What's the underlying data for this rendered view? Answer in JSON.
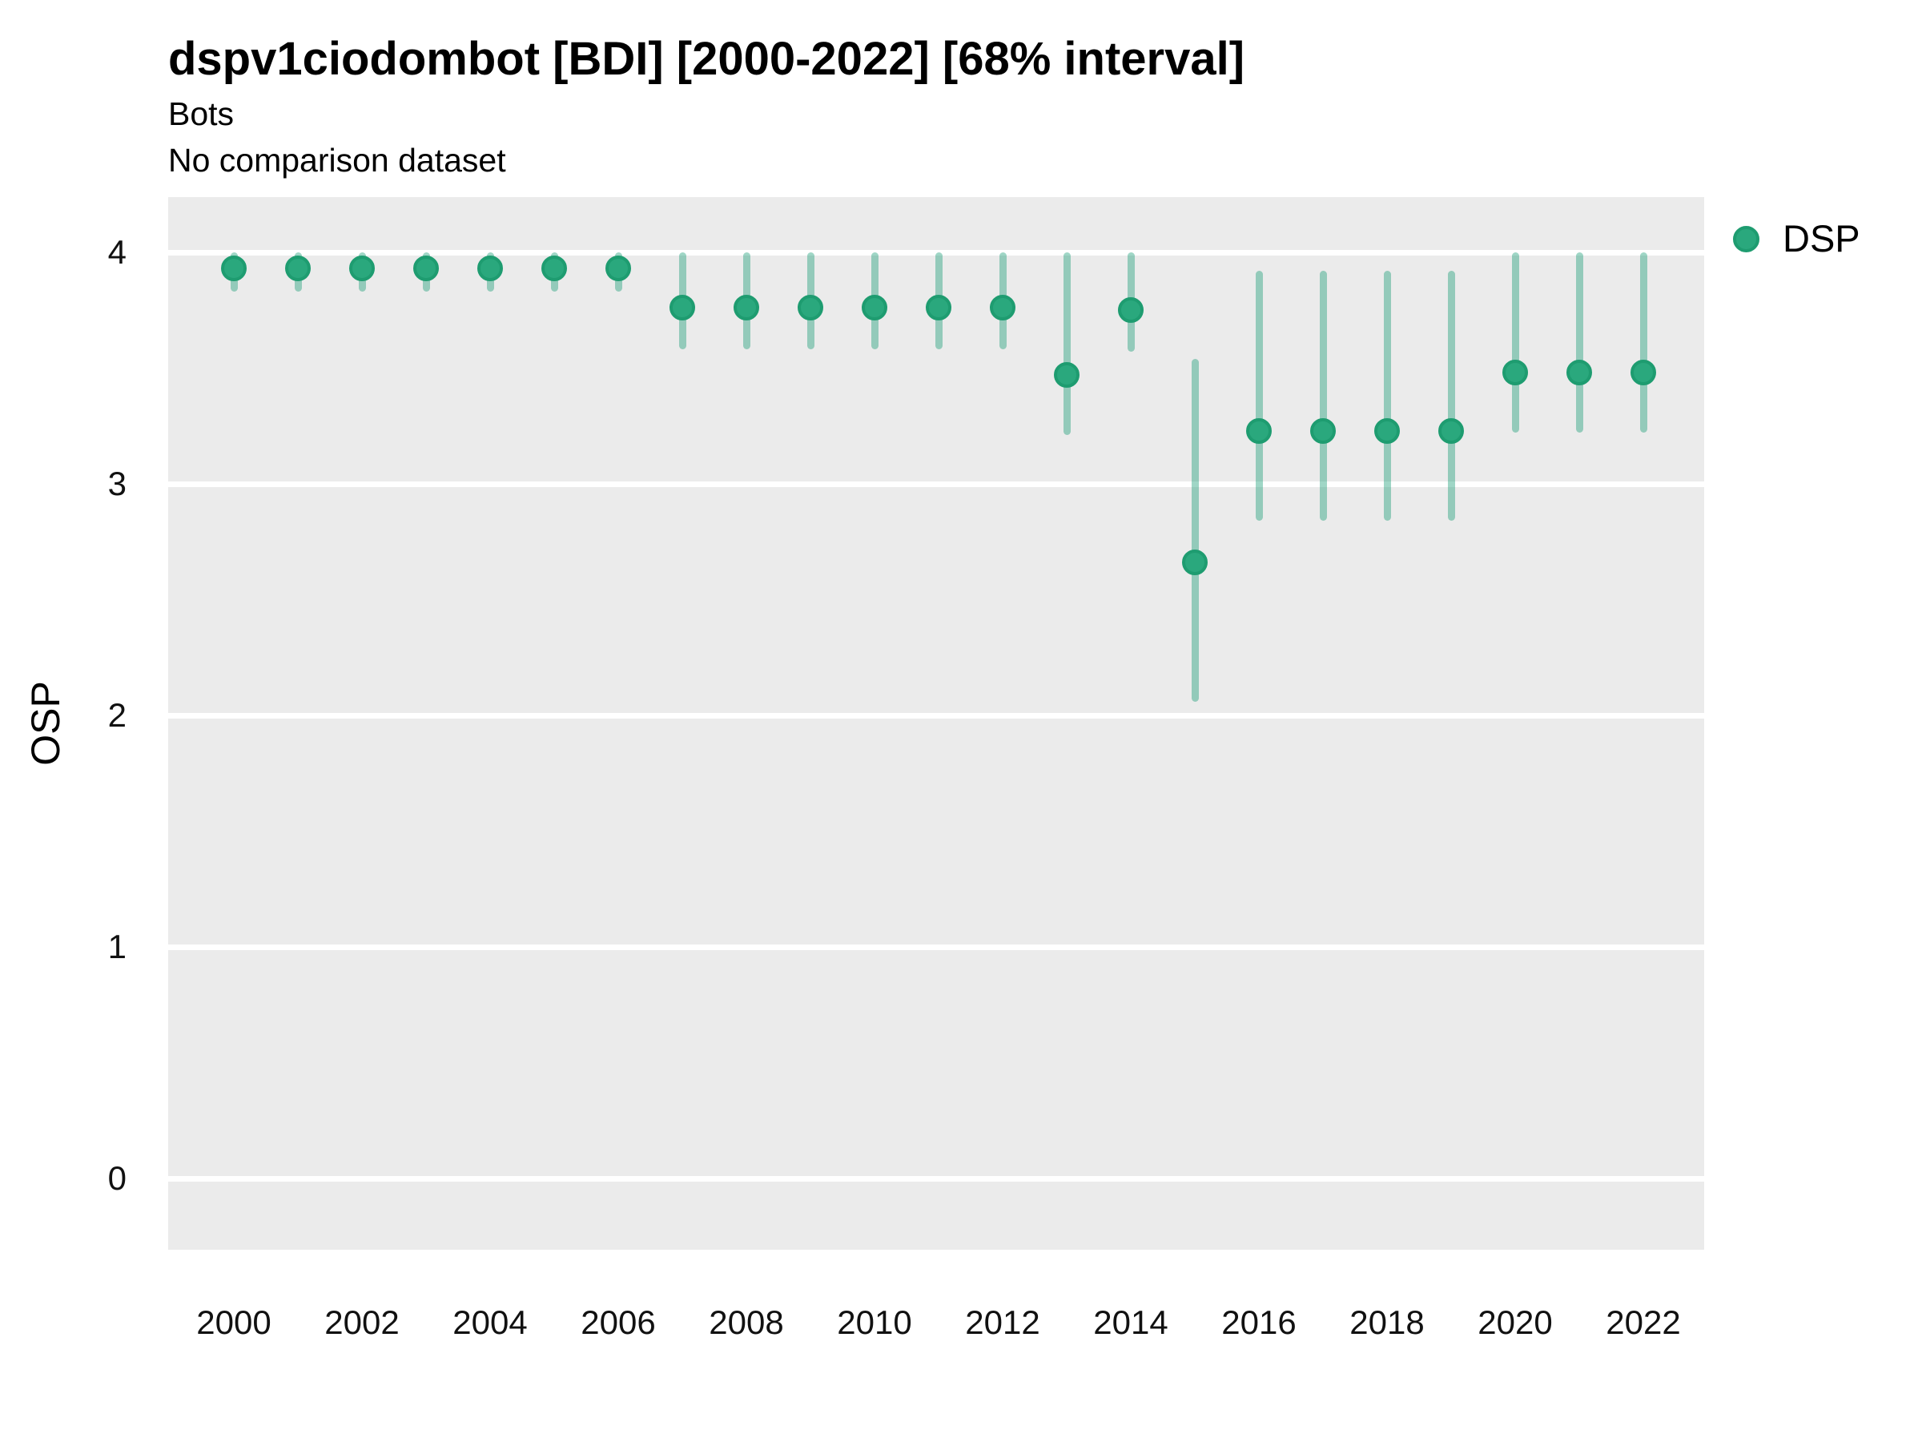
{
  "page": {
    "background": "#ffffff",
    "panel_background": "#ebebeb",
    "gridline_color": "#ffffff"
  },
  "chart_data": {
    "type": "scatter",
    "title": "dspv1ciodombot [BDI] [2000-2022] [68% interval]",
    "subtitle": "Bots",
    "note": "No comparison dataset",
    "xlabel": "",
    "ylabel": "OSP",
    "interval_label": "68% interval",
    "xlim": [
      1999,
      2023
    ],
    "ylim": [
      -0.3,
      4.25
    ],
    "y_ticks": [
      0,
      1,
      2,
      3,
      4
    ],
    "x_ticks": [
      2000,
      2002,
      2004,
      2006,
      2008,
      2010,
      2012,
      2014,
      2016,
      2018,
      2020,
      2022
    ],
    "grid": "major-horizontal-only",
    "legend_position": "top-right",
    "series": [
      {
        "name": "DSP",
        "point_color": "#2aa87d",
        "point_ring_color": "#1e9c70",
        "bar_color": "rgba(27,158,119,0.42)",
        "points": [
          {
            "year": 2000,
            "value": 3.93,
            "lower": 3.83,
            "upper": 4.0
          },
          {
            "year": 2001,
            "value": 3.93,
            "lower": 3.83,
            "upper": 4.0
          },
          {
            "year": 2002,
            "value": 3.93,
            "lower": 3.83,
            "upper": 4.0
          },
          {
            "year": 2003,
            "value": 3.93,
            "lower": 3.83,
            "upper": 4.0
          },
          {
            "year": 2004,
            "value": 3.93,
            "lower": 3.83,
            "upper": 4.0
          },
          {
            "year": 2005,
            "value": 3.93,
            "lower": 3.83,
            "upper": 4.0
          },
          {
            "year": 2006,
            "value": 3.93,
            "lower": 3.83,
            "upper": 4.0
          },
          {
            "year": 2007,
            "value": 3.76,
            "lower": 3.58,
            "upper": 4.0
          },
          {
            "year": 2008,
            "value": 3.76,
            "lower": 3.58,
            "upper": 4.0
          },
          {
            "year": 2009,
            "value": 3.76,
            "lower": 3.58,
            "upper": 4.0
          },
          {
            "year": 2010,
            "value": 3.76,
            "lower": 3.58,
            "upper": 4.0
          },
          {
            "year": 2011,
            "value": 3.76,
            "lower": 3.58,
            "upper": 4.0
          },
          {
            "year": 2012,
            "value": 3.76,
            "lower": 3.58,
            "upper": 4.0
          },
          {
            "year": 2013,
            "value": 3.47,
            "lower": 3.21,
            "upper": 4.0
          },
          {
            "year": 2014,
            "value": 3.75,
            "lower": 3.57,
            "upper": 4.0
          },
          {
            "year": 2015,
            "value": 2.66,
            "lower": 2.06,
            "upper": 3.54
          },
          {
            "year": 2016,
            "value": 3.23,
            "lower": 2.84,
            "upper": 3.92
          },
          {
            "year": 2017,
            "value": 3.23,
            "lower": 2.84,
            "upper": 3.92
          },
          {
            "year": 2018,
            "value": 3.23,
            "lower": 2.84,
            "upper": 3.92
          },
          {
            "year": 2019,
            "value": 3.23,
            "lower": 2.84,
            "upper": 3.92
          },
          {
            "year": 2020,
            "value": 3.48,
            "lower": 3.22,
            "upper": 4.0
          },
          {
            "year": 2021,
            "value": 3.48,
            "lower": 3.22,
            "upper": 4.0
          },
          {
            "year": 2022,
            "value": 3.48,
            "lower": 3.22,
            "upper": 4.0
          }
        ]
      }
    ]
  }
}
